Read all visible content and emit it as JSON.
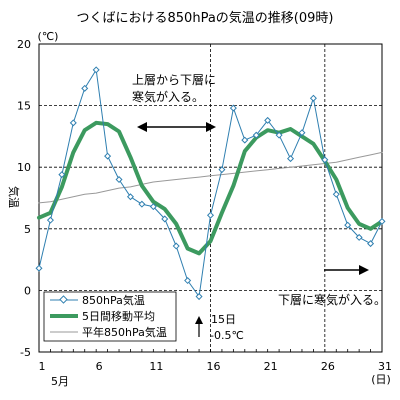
{
  "chart_data": {
    "type": "line",
    "title": "つくばにおける850hPaの気温の推移(09時)",
    "ylabel": "気温",
    "y_unit": "(℃)",
    "x_unit": "(日)",
    "x_month_label": "5月",
    "ylim": [
      -5,
      20
    ],
    "xlim": [
      1,
      31
    ],
    "y_ticks": [
      20,
      15,
      10,
      5,
      0,
      -5
    ],
    "x_ticks": [
      1,
      6,
      11,
      16,
      21,
      26,
      31
    ],
    "grid": "horizontal dashed at 0, 5, 10, 15",
    "legend_position": "bottom-left",
    "x": [
      1,
      2,
      3,
      4,
      5,
      6,
      7,
      8,
      9,
      10,
      11,
      12,
      13,
      14,
      15,
      16,
      17,
      18,
      19,
      20,
      21,
      22,
      23,
      24,
      25,
      26,
      27,
      28,
      29,
      30,
      31
    ],
    "series": [
      {
        "name": "850hPa気温",
        "color": "#2f7fb0",
        "style": "thin line with diamond markers",
        "values": [
          1.8,
          5.7,
          9.4,
          13.6,
          16.4,
          17.9,
          10.9,
          9.0,
          7.6,
          7.0,
          6.8,
          5.8,
          3.6,
          0.8,
          -0.5,
          6.1,
          9.8,
          14.8,
          12.2,
          12.6,
          13.8,
          12.6,
          10.7,
          12.8,
          15.6,
          10.6,
          7.8,
          5.3,
          4.3,
          3.8,
          5.6
        ]
      },
      {
        "name": "5日間移動平均",
        "color": "#3c9a5f",
        "style": "thick line",
        "values": [
          5.9,
          6.3,
          8.4,
          11.2,
          13.0,
          13.6,
          13.5,
          12.9,
          10.8,
          8.5,
          7.2,
          6.6,
          5.4,
          3.4,
          3.0,
          4.0,
          6.3,
          8.5,
          11.3,
          12.4,
          13.0,
          12.8,
          13.1,
          12.5,
          11.9,
          10.5,
          9.0,
          6.7,
          5.4,
          5.0,
          5.6
        ]
      },
      {
        "name": "平年850hPa気温",
        "color": "#999999",
        "style": "thin line",
        "values": [
          7.1,
          7.2,
          7.4,
          7.6,
          7.8,
          7.9,
          8.1,
          8.3,
          8.4,
          8.6,
          8.8,
          8.9,
          9.0,
          9.1,
          9.2,
          9.3,
          9.4,
          9.5,
          9.6,
          9.7,
          9.8,
          9.9,
          10.0,
          10.1,
          10.2,
          10.3,
          10.4,
          10.6,
          10.8,
          11.0,
          11.2
        ]
      }
    ],
    "annotations": {
      "upper_note_line1": "上層から下層に",
      "upper_note_line2": "寒気が入る。",
      "lower_note": "下層に寒気が入る。",
      "min_note_line1": "15日",
      "min_note_line2": "-0.5℃"
    }
  }
}
